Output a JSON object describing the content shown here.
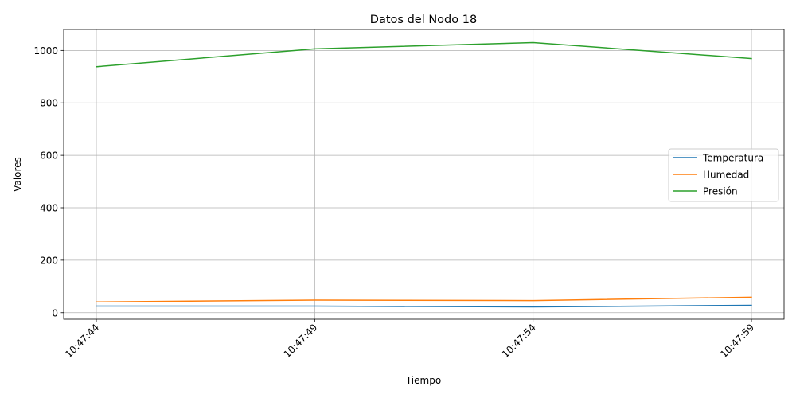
{
  "chart_data": {
    "type": "line",
    "title": "Datos del Nodo 18",
    "xlabel": "Tiempo",
    "ylabel": "Valores",
    "categories": [
      "10:47:44",
      "10:47:49",
      "10:47:54",
      "10:47:59"
    ],
    "ylim": [
      -25,
      1080
    ],
    "yticks": [
      0,
      200,
      400,
      600,
      800,
      1000
    ],
    "grid": true,
    "legend_position": "center-right",
    "series": [
      {
        "name": "Temperatura",
        "color": "#1f77b4",
        "values": [
          25,
          25,
          22,
          28
        ]
      },
      {
        "name": "Humedad",
        "color": "#ff7f0e",
        "values": [
          41,
          48,
          46,
          59
        ]
      },
      {
        "name": "Presión",
        "color": "#2ca02c",
        "values": [
          938,
          1006,
          1030,
          969
        ]
      }
    ]
  }
}
